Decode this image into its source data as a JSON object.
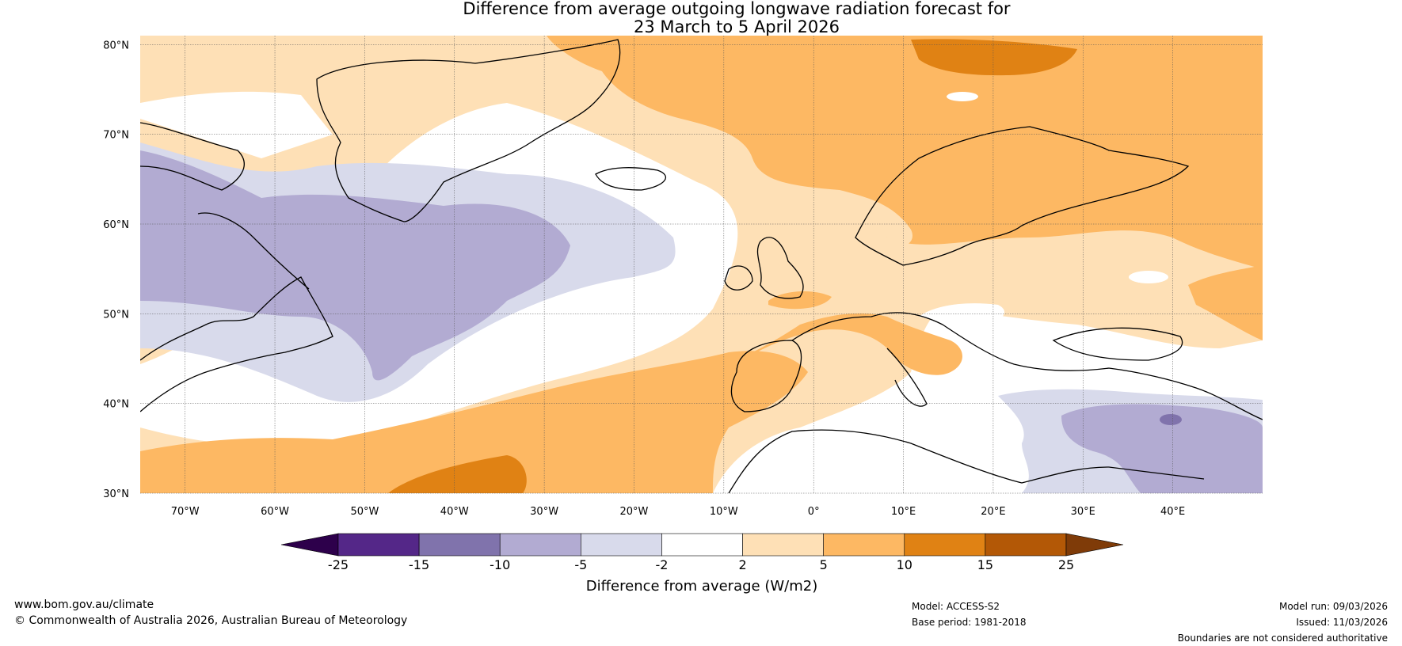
{
  "title": {
    "line1": "Difference from average outgoing longwave radiation forecast for",
    "line2": "23 March to 5 April 2026"
  },
  "map": {
    "region": "North Atlantic and Europe",
    "lat_labels": [
      "80°N",
      "70°N",
      "60°N",
      "50°N",
      "40°N",
      "30°N"
    ],
    "lon_labels": [
      "70°W",
      "60°W",
      "50°W",
      "40°W",
      "30°W",
      "20°W",
      "10°W",
      "0°",
      "10°E",
      "20°E",
      "30°E",
      "40°E"
    ],
    "lon_range": [
      -75,
      50
    ],
    "lat_range": [
      30,
      81
    ],
    "anomaly_regions": [
      {
        "area": "Greenland Sea / Norwegian Sea / Scandinavia / Arctic",
        "category": "5 to 10"
      },
      {
        "area": "Svalbard",
        "category": "10 to 15"
      },
      {
        "area": "Western Europe / Central Europe / Eastern Europe",
        "category": "2 to 5"
      },
      {
        "area": "Iberia / France / Italy",
        "category": "5 to 10"
      },
      {
        "area": "Subtropical North Atlantic",
        "category": "5 to 10"
      },
      {
        "area": "Central North Atlantic near 35°N 40°W",
        "category": "10 to 15"
      },
      {
        "area": "Labrador Sea / Central North Atlantic",
        "category": "-10 to -5"
      },
      {
        "area": "North Atlantic margins",
        "category": "-5 to -2"
      },
      {
        "area": "Eastern Mediterranean / Turkey / Middle East",
        "category": "-10 to -5"
      },
      {
        "area": "Southeast Turkey",
        "category": "-15 to -10"
      },
      {
        "area": "Mid-Atlantic band / Balkans / North Africa",
        "category": "-2 to 2"
      }
    ]
  },
  "colorbar": {
    "title": "Difference from average (W/m2)",
    "tick_labels": [
      "-25",
      "-15",
      "-10",
      "-5",
      "-2",
      "2",
      "5",
      "10",
      "15",
      "25"
    ],
    "colors": {
      "extend_min": "#2d004b",
      "lt_m15": "#542788",
      "m15_m10": "#8073ac",
      "m10_m5": "#b2abd2",
      "m5_m2": "#d8daeb",
      "m2_2": "#ffffff",
      "2_5": "#fee0b6",
      "5_10": "#fdb863",
      "10_15": "#e08214",
      "15_25": "#b35806",
      "extend_max": "#7f3b08"
    }
  },
  "footer": {
    "website": "www.bom.gov.au/climate",
    "copyright": "© Commonwealth of Australia 2026, Australian Bureau of Meteorology",
    "model": "Model: ACCESS-S2",
    "base_period": "Base period: 1981-2018",
    "model_run": "Model run: 09/03/2026",
    "issued": "Issued: 11/03/2026",
    "disclaimer": "Boundaries are not considered authoritative"
  }
}
